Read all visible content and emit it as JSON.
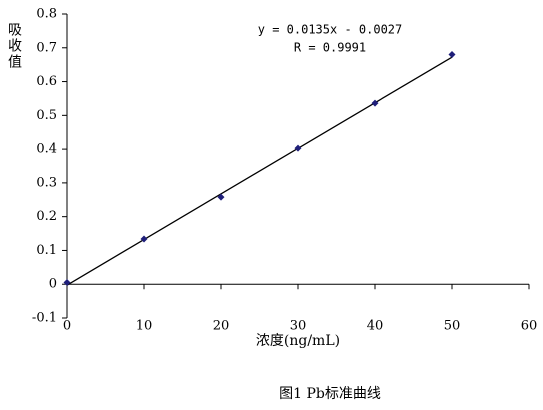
{
  "chart_data": {
    "type": "scatter",
    "x": [
      0,
      10,
      20,
      30,
      40,
      50
    ],
    "series": [
      {
        "color": "#1f1f7a",
        "values": [
          0.005,
          0.134,
          0.258,
          0.403,
          0.536,
          0.68
        ]
      }
    ],
    "trendline": {
      "slope": 0.0135,
      "intercept": -0.0027,
      "xrange": [
        0,
        50
      ],
      "color": "#000000"
    },
    "equation": "y = 0.0135x - 0.0027",
    "r_label": "R = 0.9991",
    "y_label": "吸收值",
    "x_label": "浓度(ng/mL)",
    "caption": "图1  Pb标准曲线",
    "xlim": [
      0,
      60
    ],
    "xticks": [
      0,
      10,
      20,
      30,
      40,
      50,
      60
    ],
    "ylim": [
      -0.1,
      0.8
    ],
    "yticks": [
      -0.1,
      0,
      0.1,
      0.2,
      0.3,
      0.4,
      0.5,
      0.6,
      0.7,
      0.8
    ],
    "grid": false
  }
}
